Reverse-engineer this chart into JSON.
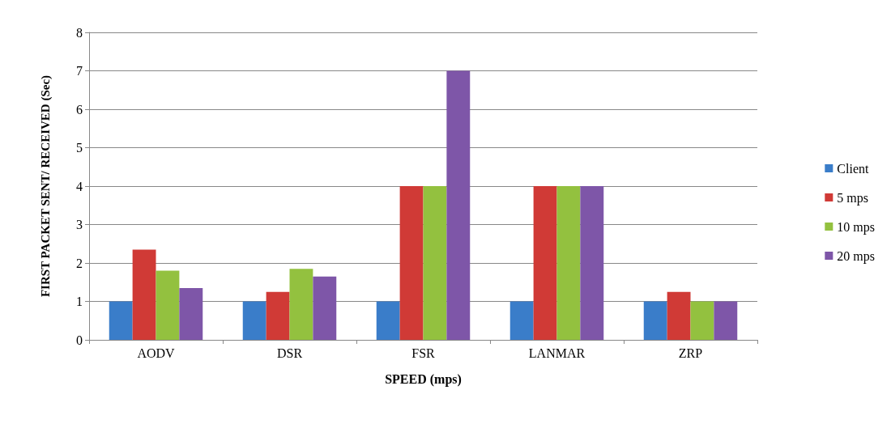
{
  "chart_data": {
    "type": "bar",
    "xlabel": "SPEED (mps)",
    "ylabel": "FIRST PACKET SENT/ RECEIVED (Sec)",
    "categories": [
      "AODV",
      "DSR",
      "FSR",
      "LANMAR",
      "ZRP"
    ],
    "series": [
      {
        "name": "Client",
        "color": "#3a7dc9",
        "values": [
          1,
          1,
          1,
          1,
          1
        ]
      },
      {
        "name": "5 mps",
        "color": "#d03a36",
        "values": [
          2.35,
          1.25,
          4,
          4,
          1.25
        ]
      },
      {
        "name": "10 mps",
        "color": "#93c13f",
        "values": [
          1.8,
          1.85,
          4,
          4,
          1
        ]
      },
      {
        "name": "20 mps",
        "color": "#7e56a8",
        "values": [
          1.35,
          1.65,
          7,
          4,
          1
        ]
      }
    ],
    "ylim": [
      0,
      8
    ],
    "yticks": [
      0,
      1,
      2,
      3,
      4,
      5,
      6,
      7,
      8
    ],
    "grid": "y",
    "legend": "right"
  }
}
